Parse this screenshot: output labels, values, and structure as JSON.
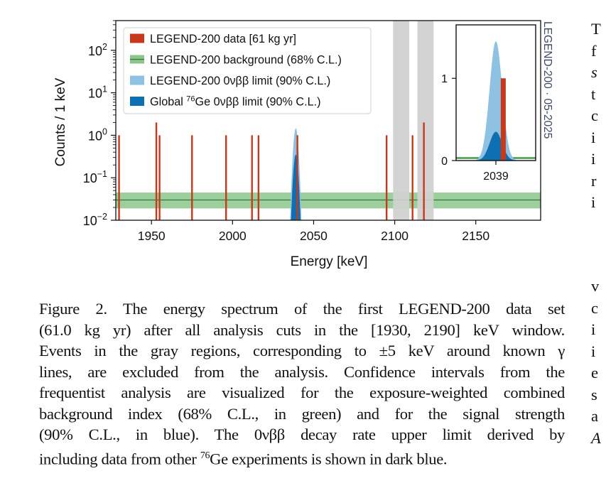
{
  "figure": {
    "watermark": "LEGEND-200 · 05-2025"
  },
  "chart_data": [
    {
      "type": "bar",
      "title": "",
      "xlabel": "Energy [keV]",
      "ylabel": "Counts / 1 keV",
      "xlim": [
        1928,
        2190
      ],
      "ylim": [
        0.01,
        500
      ],
      "yscale": "log",
      "xticks": [
        1950,
        2000,
        2050,
        2100,
        2150
      ],
      "xtick_labels": [
        "1950",
        "2000",
        "2050",
        "2100",
        "2150"
      ],
      "yticks": [
        0.01,
        0.1,
        1,
        10,
        100
      ],
      "ytick_labels": [
        {
          "base": "10",
          "exp": "−2"
        },
        {
          "base": "10",
          "exp": "−1"
        },
        {
          "base": "10",
          "exp": "0"
        },
        {
          "base": "10",
          "exp": "1"
        },
        {
          "base": "10",
          "exp": "2"
        }
      ],
      "legend_position": "top-left",
      "legend": [
        {
          "label": "LEGEND-200 data [61 kg yr]",
          "color": "#c8391b",
          "marker": "square"
        },
        {
          "label": "LEGEND-200 background (68% C.L.)",
          "color": "#8cc58c",
          "marker": "band-line"
        },
        {
          "label": "LEGEND-200 0νββ limit (90% C.L.)",
          "color": "#8fc1e3",
          "marker": "square"
        },
        {
          "label_pre": "Global ",
          "label_sup": "76",
          "label_post": "Ge 0νββ limit (90% C.L.)",
          "color": "#0f6fb3",
          "marker": "square"
        }
      ],
      "series": [
        {
          "name": "LEGEND-200 data [61 kg yr]",
          "type": "bar",
          "color": "#c8391b",
          "x": [
            1930,
            1953,
            1955,
            1975,
            1996,
            2012,
            2016,
            2040,
            2095,
            2111,
            2118
          ],
          "values": [
            1,
            2,
            1,
            1,
            1,
            1,
            1,
            1,
            1,
            1,
            2
          ]
        },
        {
          "name": "LEGEND-200 background (68% C.L.)",
          "type": "band",
          "color": "#8cc58c",
          "line_color": "#2e7d32",
          "central": 0.03,
          "lower": 0.019,
          "upper": 0.045
        },
        {
          "name": "LEGEND-200 0νββ limit (90% C.L.)",
          "type": "area",
          "color": "#8fc1e3",
          "center": 2039,
          "sigma": 1.1,
          "peak": 1.45
        },
        {
          "name": "Global 76Ge 0νββ limit (90% C.L.)",
          "type": "area",
          "color": "#0f6fb3",
          "center": 2039,
          "sigma": 1.1,
          "peak": 0.35
        }
      ],
      "excluded_regions": [
        {
          "label": "γ line ±5 keV",
          "range": [
            2099,
            2109
          ],
          "color": "#d3d3d3"
        },
        {
          "label": "γ line ±5 keV",
          "range": [
            2114,
            2124
          ],
          "color": "#d3d3d3"
        }
      ]
    },
    {
      "type": "bar",
      "title": "inset",
      "xlabel": "",
      "ylabel": "",
      "xlim": [
        2032,
        2046
      ],
      "ylim": [
        0,
        1.65
      ],
      "yscale": "linear",
      "xticks": [
        2039
      ],
      "xtick_labels": [
        "2039"
      ],
      "yticks": [
        0,
        1
      ],
      "ytick_labels": [
        "0",
        "1"
      ],
      "series": [
        {
          "name": "LEGEND-200 data",
          "type": "bar",
          "color": "#c8391b",
          "x": [
            2040.3
          ],
          "values": [
            1
          ]
        },
        {
          "name": "LEGEND-200 background",
          "type": "band",
          "color": "#8cc58c",
          "line_color": "#2e7d32",
          "central": 0.03,
          "lower": 0.019,
          "upper": 0.045
        },
        {
          "name": "LEGEND-200 0νββ limit",
          "type": "area",
          "color": "#8fc1e3",
          "center": 2039,
          "sigma": 1.1,
          "peak": 1.45
        },
        {
          "name": "Global 76Ge 0νββ limit",
          "type": "area",
          "color": "#0f6fb3",
          "center": 2039,
          "sigma": 1.1,
          "peak": 0.35
        }
      ]
    }
  ],
  "caption": {
    "lines": [
      "Figure 2.  The energy spectrum of the first LEGEND-200 data set",
      "(61.0 kg yr) after all analysis cuts in the [1930, 2190] keV window.",
      "Events in the gray regions, corresponding to ±5 keV around known γ",
      "lines, are excluded from the analysis. Confidence intervals from the",
      "frequentist analysis are visualized for the exposure-weighted combined",
      "background index (68% C.L., in green) and for the signal strength",
      "(90% C.L., in blue).  The 0νββ decay rate upper limit derived by"
    ],
    "last_line_pre": "including data from other ",
    "last_line_sup": "76",
    "last_line_post": "Ge experiments is shown in dark blue."
  },
  "side_column": {
    "top_letters": [
      "T",
      "f",
      "s",
      "t",
      "c",
      "i",
      "i",
      "r",
      "i"
    ],
    "bottom_letters": [
      "v",
      "c",
      "i",
      "i",
      "e",
      "s",
      "a",
      "A"
    ]
  }
}
